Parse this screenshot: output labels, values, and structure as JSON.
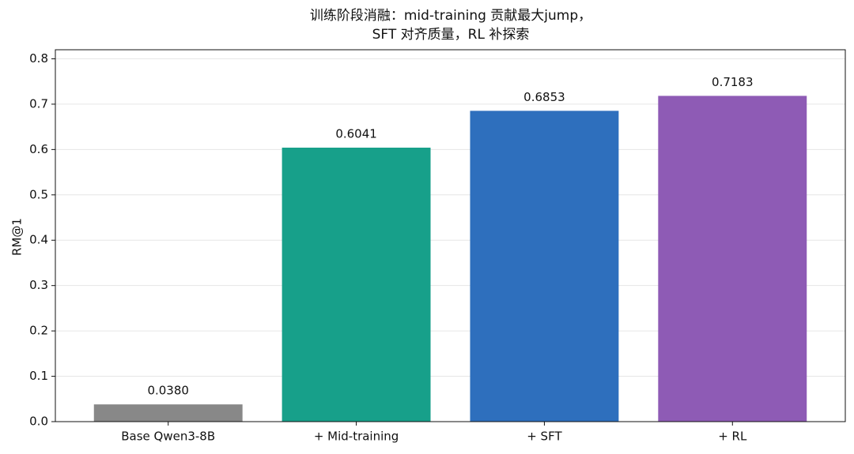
{
  "chart_data": {
    "type": "bar",
    "title": [
      "训练阶段消融：mid-training 贡献最大jump，",
      "SFT 对齐质量，RL 补探索"
    ],
    "y_label": "RM@1",
    "categories": [
      "Base Qwen3-8B",
      "+ Mid-training",
      "+ SFT",
      "+ RL"
    ],
    "values": [
      0.038,
      0.6041,
      0.6853,
      0.7183
    ],
    "value_labels": [
      "0.0380",
      "0.6041",
      "0.6853",
      "0.7183"
    ],
    "colors": [
      "#888888",
      "#17a08a",
      "#2e6fbd",
      "#8e5bb5"
    ],
    "ylim": [
      0,
      0.82
    ],
    "yticks": [
      {
        "value": 0,
        "label": "0.0"
      },
      0.1,
      0.2,
      0.3,
      0.4,
      0.5,
      0.6,
      0.7,
      0.8
    ],
    "grid": true
  }
}
